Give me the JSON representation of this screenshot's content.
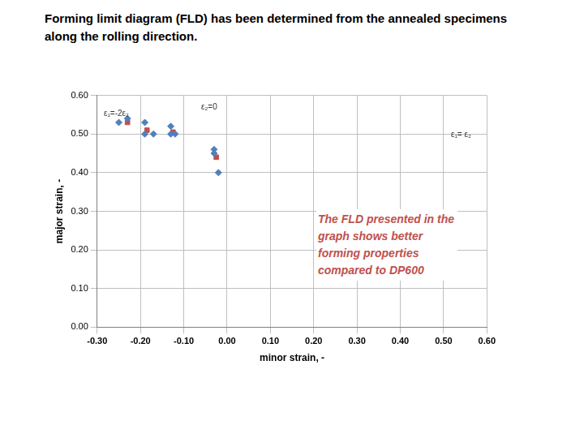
{
  "chart_data": {
    "type": "scatter",
    "title": "Forming limit diagram (FLD) has been determined from the annealed specimens along the rolling direction.",
    "x_label": "minor strain, -",
    "y_label": "major strain, -",
    "annotations": [
      "ε₁=-2ε₂",
      "ε₂=0",
      "ε₁= ε₂",
      "The FLD presented in the graph shows better forming properties compared to DP600"
    ],
    "series": [
      {
        "color": "#4f81bd",
        "marker": "diamond",
        "x": [
          -0.25,
          -0.23,
          -0.19,
          -0.19,
          -0.17,
          -0.13,
          -0.13,
          -0.12,
          -0.03,
          -0.03,
          -0.02
        ],
        "values": [
          0.53,
          0.54,
          0.53,
          0.5,
          0.5,
          0.52,
          0.5,
          0.5,
          0.46,
          0.45,
          0.4
        ]
      },
      {
        "color": "#c0504d",
        "marker": "square",
        "x": [
          -0.23,
          -0.185,
          -0.125,
          -0.025
        ],
        "values": [
          0.53,
          0.51,
          0.505,
          0.44
        ]
      }
    ],
    "xlim": [
      -0.3,
      0.6
    ],
    "xticks": [
      {
        "value": -0.3,
        "label": "-0.30"
      },
      {
        "value": -0.2,
        "label": "-0.20"
      },
      {
        "value": -0.1,
        "label": "-0.10"
      },
      {
        "value": 0,
        "label": "0.00"
      },
      {
        "value": 0.1,
        "label": "0.10"
      },
      {
        "value": 0.2,
        "label": "0.20"
      },
      {
        "value": 0.3,
        "label": "0.30"
      },
      {
        "value": 0.4,
        "label": "0.40"
      },
      {
        "value": 0.5,
        "label": "0.50"
      },
      {
        "value": 0.6,
        "label": "0.60"
      }
    ],
    "ylim": [
      0,
      0.6
    ],
    "yticks": [
      {
        "value": 0,
        "label": "0.00"
      },
      {
        "value": 0.1,
        "label": "0.10"
      },
      {
        "value": 0.2,
        "label": "0.20"
      },
      {
        "value": 0.3,
        "label": "0.30"
      },
      {
        "value": 0.4,
        "label": "0.40"
      },
      {
        "value": 0.5,
        "label": "0.50"
      },
      {
        "value": 0.6,
        "label": "0.60"
      }
    ],
    "grid": true
  }
}
